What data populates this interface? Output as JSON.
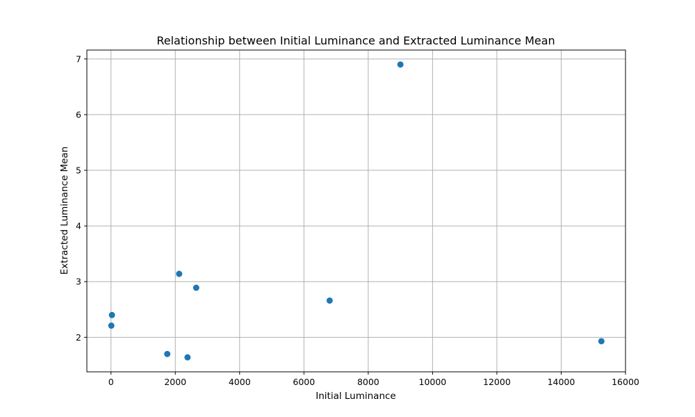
{
  "chart_data": {
    "type": "scatter",
    "title": "Relationship between Initial Luminance and Extracted Luminance Mean",
    "xlabel": "Initial Luminance",
    "ylabel": "Extracted Luminance Mean",
    "xlim": [
      -750,
      16000
    ],
    "ylim": [
      1.38,
      7.16
    ],
    "xticks": [
      0,
      2000,
      4000,
      6000,
      8000,
      10000,
      12000,
      14000,
      16000
    ],
    "yticks": [
      2,
      3,
      4,
      5,
      6,
      7
    ],
    "grid": true,
    "marker_color": "#1f77b4",
    "points": [
      {
        "x": 30,
        "y": 2.4
      },
      {
        "x": 10,
        "y": 2.21
      },
      {
        "x": 1750,
        "y": 1.7
      },
      {
        "x": 2120,
        "y": 3.14
      },
      {
        "x": 2380,
        "y": 1.64
      },
      {
        "x": 2650,
        "y": 2.89
      },
      {
        "x": 6800,
        "y": 2.66
      },
      {
        "x": 9000,
        "y": 6.9
      },
      {
        "x": 15250,
        "y": 1.93
      }
    ]
  }
}
